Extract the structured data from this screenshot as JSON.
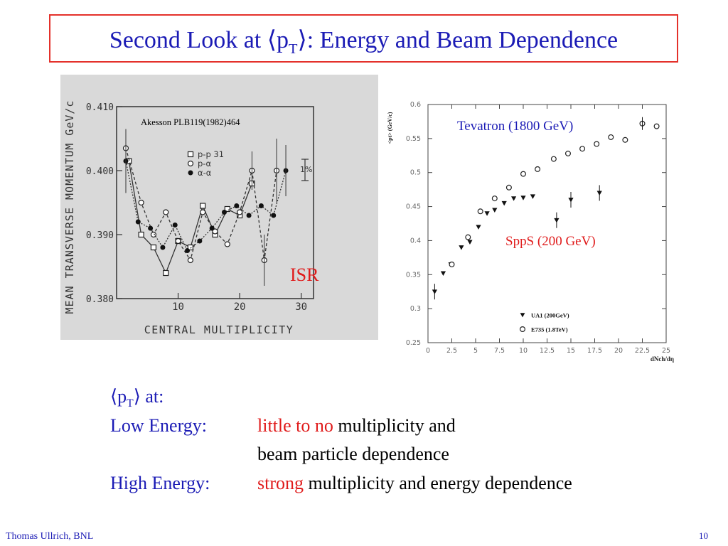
{
  "slide": {
    "title_pre": "Second Look at ⟨p",
    "title_sub": "T",
    "title_post": "⟩: Energy and Beam Dependence",
    "pt_pre": "⟨p",
    "pt_sub": "T",
    "pt_post": "⟩ at:",
    "low_label": "Low Energy:",
    "low_red": "little to no",
    "low_rest": " multiplicity and",
    "low_line2": "beam particle dependence",
    "high_label": "High Energy:",
    "high_red": "strong",
    "high_rest": " multiplicity and energy dependence",
    "footer_author": "Thomas Ullrich, BNL",
    "page_number": "10"
  },
  "colors": {
    "title": "#1b1bb5",
    "accent_red": "#e01b1b",
    "panel_gray": "#d9d9d9"
  },
  "chart_data": [
    {
      "type": "line",
      "ylabel": "MEAN TRANSVERSE MOMENTUM GeV/c",
      "xlabel": "CENTRAL MULTIPLICITY",
      "citation": "Akesson PLB119(1982)464",
      "overlay_label": "ISR",
      "scale_note": "1%",
      "xlim": [
        0,
        32
      ],
      "ylim": [
        0.38,
        0.41
      ],
      "x_ticks": [
        "10",
        "20",
        "30"
      ],
      "y_ticks": [
        "0.380",
        "0.390",
        "0.400",
        "0.410"
      ],
      "series": [
        {
          "name": "p-p 31",
          "marker": "open-square",
          "x": [
            2,
            4,
            6,
            8,
            10,
            12,
            14,
            16,
            18,
            20,
            22
          ],
          "y": [
            0.4015,
            0.39,
            0.388,
            0.384,
            0.389,
            0.388,
            0.3945,
            0.39,
            0.394,
            0.393,
            0.398
          ]
        },
        {
          "name": "p-α",
          "marker": "open-circle",
          "x": [
            1.5,
            4,
            6,
            8,
            10,
            12,
            14,
            16,
            18,
            20,
            22,
            24,
            26
          ],
          "y": [
            0.4035,
            0.395,
            0.39,
            0.3935,
            0.389,
            0.386,
            0.3935,
            0.3905,
            0.3885,
            0.3935,
            0.4,
            0.386,
            0.4
          ]
        },
        {
          "name": "α-α",
          "marker": "filled-circle",
          "x": [
            1.5,
            3.5,
            5.5,
            7.5,
            9.5,
            11.5,
            13.5,
            15.5,
            17.5,
            19.5,
            21.5,
            23.5,
            25.5,
            27.5
          ],
          "y": [
            0.4015,
            0.392,
            0.391,
            0.388,
            0.3915,
            0.3875,
            0.389,
            0.391,
            0.3935,
            0.3945,
            0.393,
            0.3945,
            0.393,
            0.4
          ]
        }
      ]
    },
    {
      "type": "scatter",
      "ylabel": "<pt> (GeV/c)",
      "xlabel": "dNch/dη",
      "xlim": [
        0,
        25
      ],
      "ylim": [
        0.25,
        0.6
      ],
      "x_ticks": [
        "0",
        "2.5",
        "5",
        "7.5",
        "10",
        "12.5",
        "15",
        "17.5",
        "20",
        "22.5",
        "25"
      ],
      "y_ticks": [
        "0.25",
        "0.3",
        "0.35",
        "0.4",
        "0.45",
        "0.5",
        "0.55",
        "0.6"
      ],
      "labels": {
        "tevatron": "Tevatron (1800 GeV)",
        "sppbar": "SppS (200 GeV)"
      },
      "series": [
        {
          "name": "UA1 (200GeV)",
          "marker": "filled-triangle-down",
          "x": [
            0.7,
            1.6,
            2.4,
            3.5,
            4.4,
            5.3,
            6.2,
            7.0,
            8.0,
            9.0,
            10.0,
            11.0,
            13.5,
            15.0,
            18.0
          ],
          "y": [
            0.325,
            0.352,
            0.365,
            0.39,
            0.398,
            0.42,
            0.44,
            0.445,
            0.455,
            0.462,
            0.463,
            0.465,
            0.43,
            0.46,
            0.47
          ]
        },
        {
          "name": "E735 (1.8TeV)",
          "marker": "open-circle",
          "x": [
            2.5,
            4.2,
            5.5,
            7.0,
            8.5,
            10.0,
            11.5,
            13.2,
            14.7,
            16.2,
            17.7,
            19.2,
            20.7,
            22.5,
            24.0
          ],
          "y": [
            0.365,
            0.405,
            0.443,
            0.462,
            0.478,
            0.498,
            0.505,
            0.52,
            0.528,
            0.535,
            0.542,
            0.552,
            0.548,
            0.572,
            0.568
          ]
        }
      ]
    }
  ]
}
